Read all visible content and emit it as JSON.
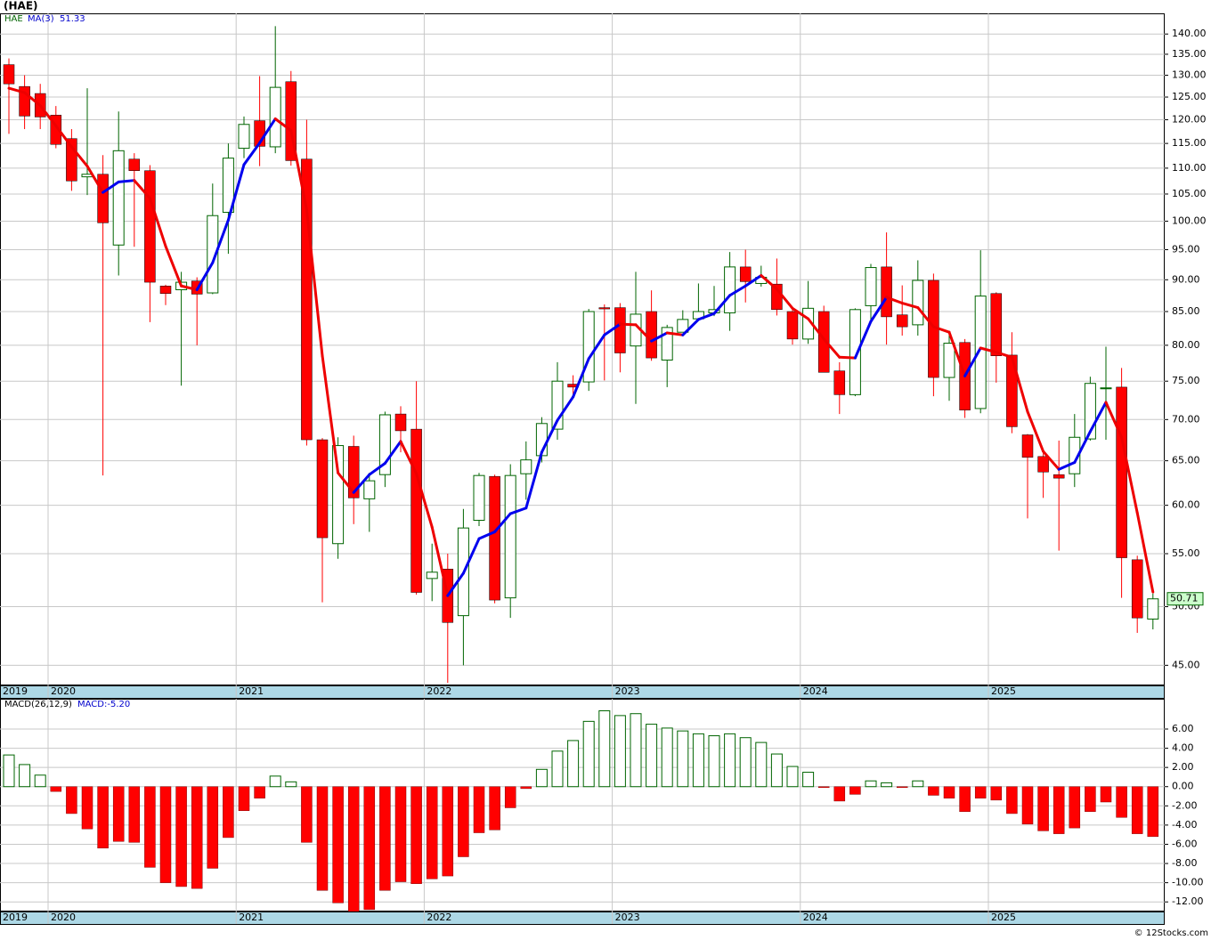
{
  "chart_data": [
    {
      "type": "candlestick",
      "title": "(HAE)",
      "symbol": "HAE",
      "ma_value_label": "51.33",
      "last_price_label": "50.71",
      "footer": "© 12Stocks.com",
      "x_start_label": "2019",
      "xticks": [
        {
          "value": 3,
          "label": "2020"
        },
        {
          "value": 15,
          "label": "2021"
        },
        {
          "value": 27,
          "label": "2022"
        },
        {
          "value": 39,
          "label": "2023"
        },
        {
          "value": 51,
          "label": "2024"
        },
        {
          "value": 63,
          "label": "2025"
        }
      ],
      "ylim": [
        43.4,
        145.3
      ],
      "log_scale": true,
      "grid": true,
      "yticks": [
        {
          "value": 45,
          "label": "45.00"
        },
        {
          "value": 50,
          "label": "50.00"
        },
        {
          "value": 55,
          "label": "55.00"
        },
        {
          "value": 60,
          "label": "60.00"
        },
        {
          "value": 65,
          "label": "65.00"
        },
        {
          "value": 70,
          "label": "70.00"
        },
        {
          "value": 75,
          "label": "75.00"
        },
        {
          "value": 80,
          "label": "80.00"
        },
        {
          "value": 85,
          "label": "85.00"
        },
        {
          "value": 90,
          "label": "90.00"
        },
        {
          "value": 95,
          "label": "95.00"
        },
        {
          "value": 100,
          "label": "100.00"
        },
        {
          "value": 105,
          "label": "105.00"
        },
        {
          "value": 110,
          "label": "110.00"
        },
        {
          "value": 115,
          "label": "115.00"
        },
        {
          "value": 120,
          "label": "120.00"
        },
        {
          "value": 125,
          "label": "125.00"
        },
        {
          "value": 130,
          "label": "130.00"
        },
        {
          "value": 135,
          "label": "135.00"
        },
        {
          "value": 140,
          "label": "140.00"
        }
      ],
      "up_color": "#006400",
      "down_color": "#ff0000",
      "open": [
        132.5,
        127.4,
        125.8,
        121,
        116,
        108.3,
        108.8,
        95.8,
        111.8,
        109.5,
        89,
        88.4,
        89.8,
        87.9,
        101.6,
        114,
        119.8,
        114.3,
        128.5,
        111.8,
        67.5,
        56,
        66.7,
        60.7,
        63.4,
        70.7,
        68.8,
        52.6,
        53.5,
        49.2,
        58.4,
        63.2,
        50.8,
        63.5,
        65.6,
        68.8,
        74.6,
        74.9,
        85.6,
        85.6,
        79.9,
        85,
        77.9,
        81.9,
        83.9,
        84.8,
        84.8,
        92.1,
        89.4,
        89.3,
        85,
        80.9,
        85,
        76.4,
        73.2,
        85.9,
        92.1,
        84.5,
        83,
        89.9,
        75.5,
        80.4,
        71.4,
        87.8,
        78.6,
        68.1,
        65.5,
        63.4,
        63.5,
        67.6,
        74,
        74.2,
        54.4,
        48.9
      ],
      "high": [
        134,
        130,
        128,
        123,
        118,
        127,
        112.6,
        121.8,
        113,
        110.6,
        89.2,
        91.3,
        90.4,
        107,
        115,
        120.7,
        129.8,
        142,
        131,
        120,
        67.7,
        67.8,
        68,
        63.6,
        71,
        71.7,
        75,
        56,
        55,
        59.6,
        63.6,
        63.4,
        64.6,
        67.3,
        70.3,
        77.6,
        75.8,
        85.4,
        86.1,
        86.3,
        91.3,
        88.3,
        83,
        85.2,
        89.4,
        89,
        94.6,
        95,
        92.3,
        93.5,
        85.6,
        89.8,
        85.9,
        77.6,
        85.5,
        92.6,
        98,
        89.1,
        93.2,
        91,
        81.7,
        80.9,
        94.9,
        88,
        81.9,
        68.2,
        65.9,
        67.4,
        70.7,
        75.6,
        79.8,
        76.8,
        54.8,
        51.2
      ],
      "low": [
        117,
        118,
        118,
        114,
        105.6,
        104.8,
        63.3,
        90.7,
        95.5,
        83.4,
        86,
        74.4,
        80,
        87.7,
        94.3,
        112,
        110.4,
        113,
        110.5,
        66.8,
        50.4,
        54.5,
        58,
        57.2,
        62,
        66,
        51.1,
        50.5,
        43.6,
        45,
        57.8,
        50.3,
        49,
        60.6,
        64.8,
        67.5,
        73.2,
        73.7,
        75.1,
        76.2,
        72,
        77.8,
        74.2,
        81.9,
        83.7,
        84.3,
        82.1,
        86.4,
        88.9,
        84.4,
        80.1,
        80.2,
        76.2,
        70.7,
        73,
        83.7,
        80.1,
        81.4,
        81.4,
        73,
        72.4,
        70.2,
        70.8,
        74.8,
        68.3,
        58.6,
        60.8,
        55.3,
        62,
        67.4,
        67.5,
        50.8,
        47.7,
        48
      ],
      "close": [
        128,
        120.8,
        120.6,
        114.8,
        107.5,
        108.8,
        99.7,
        113.5,
        109.5,
        89.6,
        87.8,
        89.6,
        87.7,
        101,
        112,
        119,
        114.4,
        127.2,
        111.5,
        67.5,
        56.6,
        66.8,
        60.8,
        62.7,
        70.6,
        68.6,
        51.3,
        53.2,
        48.6,
        57.6,
        63.3,
        50.6,
        63.3,
        65.1,
        69.5,
        75,
        74.2,
        85,
        85.4,
        78.9,
        84.6,
        78.2,
        82.6,
        83.8,
        85,
        85.3,
        92.1,
        89.7,
        90.4,
        85.3,
        80.9,
        85.5,
        76.2,
        73.2,
        85.3,
        92,
        84.2,
        82.7,
        89.9,
        75.5,
        80.3,
        71.2,
        87.4,
        78.5,
        69.1,
        65.4,
        63.7,
        63,
        67.8,
        74.7,
        74.1,
        54.6,
        49,
        50.71
      ],
      "ma": {
        "name": "MA(3)",
        "up_color": "#0000ee",
        "down_color": "#ee0000",
        "values": [
          127,
          126,
          123.1,
          118.7,
          114.3,
          110.4,
          105.3,
          107.3,
          107.6,
          104.2,
          95.6,
          89,
          88.4,
          92.8,
          100.2,
          110.7,
          115.1,
          120.2,
          117.7,
          102.1,
          78.5,
          63.6,
          61.4,
          63.4,
          64.7,
          67.3,
          63.5,
          57.7,
          51,
          53.1,
          56.5,
          57.2,
          59.1,
          59.7,
          66,
          69.9,
          72.9,
          78.1,
          81.5,
          83.1,
          83,
          80.6,
          81.8,
          81.5,
          83.8,
          84.7,
          87.5,
          89,
          90.7,
          88.5,
          85.5,
          83.9,
          80.9,
          78.3,
          78.2,
          83.5,
          87.2,
          86.3,
          85.6,
          82.7,
          81.9,
          75.7,
          79.6,
          79,
          78.3,
          71,
          66.1,
          64,
          64.8,
          68.5,
          72.2,
          67.8,
          59.2,
          51.33
        ]
      }
    },
    {
      "type": "bar",
      "title": "MACD(26,12,9)",
      "value_label": "MACD:-5.20",
      "pos_color": "#006400",
      "neg_color": "#ff0000",
      "ylim": [
        -13.0,
        9.15
      ],
      "grid": true,
      "yticks": [
        {
          "value": -12,
          "label": "-12.00"
        },
        {
          "value": -10,
          "label": "-10.00"
        },
        {
          "value": -8,
          "label": "-8.00"
        },
        {
          "value": -6,
          "label": "-6.00"
        },
        {
          "value": -4,
          "label": "-4.00"
        },
        {
          "value": -2,
          "label": "-2.00"
        },
        {
          "value": 0,
          "label": "0.00"
        },
        {
          "value": 2,
          "label": "2.00"
        },
        {
          "value": 4,
          "label": "4.00"
        },
        {
          "value": 6,
          "label": "6.00"
        }
      ],
      "values": [
        3.3,
        2.3,
        1.2,
        -0.5,
        -2.8,
        -4.4,
        -6.4,
        -5.7,
        -5.8,
        -8.4,
        -10,
        -10.4,
        -10.6,
        -8.5,
        -5.3,
        -2.5,
        -1.2,
        1.1,
        0.5,
        -5.8,
        -10.8,
        -12.1,
        -13.0,
        -12.8,
        -10.8,
        -9.9,
        -10.1,
        -9.6,
        -9.3,
        -7.3,
        -4.8,
        -4.5,
        -2.2,
        -0.2,
        1.8,
        3.7,
        4.8,
        6.8,
        7.9,
        7.4,
        7.6,
        6.5,
        6.1,
        5.8,
        5.5,
        5.3,
        5.5,
        5.1,
        4.6,
        3.4,
        2.1,
        1.5,
        -0.1,
        -1.5,
        -0.8,
        0.6,
        0.4,
        -0.1,
        0.6,
        -0.9,
        -1.2,
        -2.6,
        -1.2,
        -1.4,
        -2.8,
        -3.9,
        -4.6,
        -4.9,
        -4.3,
        -2.6,
        -1.6,
        -3.2,
        -4.9,
        -5.2
      ]
    }
  ]
}
